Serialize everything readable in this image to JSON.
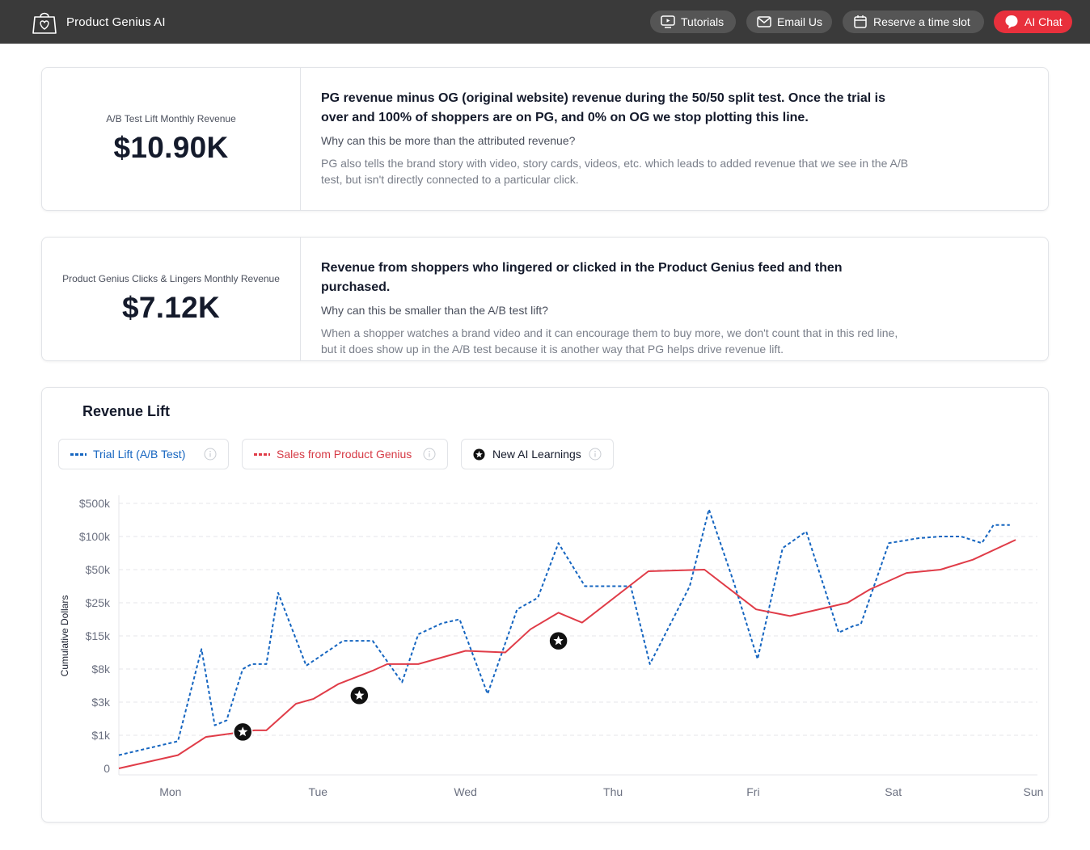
{
  "app": {
    "name": "Product Genius AI",
    "logo_icon": "shopping-bag-heart-icon"
  },
  "nav": {
    "tutorials": "Tutorials",
    "email": "Email Us",
    "reserve": "Reserve a time slot",
    "ai_chat": "AI Chat"
  },
  "metrics": [
    {
      "label": "A/B Test Lift Monthly Revenue",
      "value": "$10.90K",
      "headline": "PG revenue minus OG (original website) revenue during the 50/50 split test. Once the trial is over and 100% of shoppers are on PG, and 0% on OG we stop plotting this line.",
      "question": "Why can this be more than the attributed revenue?",
      "explanation": "PG also tells the brand story with video, story cards, videos, etc. which leads to added revenue that we see in the A/B test, but isn't directly connected to a particular click."
    },
    {
      "label": "Product Genius Clicks & Lingers Monthly Revenue",
      "value": "$7.12K",
      "headline": "Revenue from shoppers who lingered or clicked in the Product Genius feed and then purchased.",
      "question": "Why can this be smaller than the A/B test lift?",
      "explanation": "When a shopper watches a brand video and it can encourage them to buy more, we don't count that in this red line, but it does show up in the A/B test because it is another way that PG helps drive revenue lift."
    }
  ],
  "chart": {
    "title": "Revenue Lift",
    "legend": {
      "trial": "Trial Lift (A/B Test)",
      "sales": "Sales from Product Genius",
      "learnings": "New AI Learnings"
    }
  },
  "chart_data": {
    "type": "line",
    "title": "Revenue Lift",
    "xlabel": "",
    "ylabel": "Cumulative Dollars",
    "y_tick_labels": [
      "0",
      "$1k",
      "$3k",
      "$8k",
      "$15k",
      "$25k",
      "$50k",
      "$100k",
      "$500k"
    ],
    "y_scale": "ordinal-tick",
    "x_tick_labels": [
      "Mon",
      "Tue",
      "Wed",
      "Thu",
      "Fri",
      "Sat",
      "Sun"
    ],
    "x_tick_positions": [
      0.35,
      1.35,
      2.35,
      3.35,
      4.3,
      5.25,
      6.2
    ],
    "xlim": [
      0,
      6.2
    ],
    "grid": true,
    "legend_placement": "top-left",
    "colors": {
      "trial": "#1565c0",
      "sales": "#e03c48",
      "learnings": "#111111"
    },
    "series": [
      {
        "name": "Trial Lift (A/B Test)",
        "style": "dashed",
        "x": [
          0,
          0.4,
          0.56,
          0.65,
          0.73,
          0.84,
          0.9,
          1.0,
          1.08,
          1.27,
          1.52,
          1.6,
          1.72,
          1.92,
          2.03,
          2.19,
          2.31,
          2.5,
          2.7,
          2.84,
          2.98,
          3.16,
          3.47,
          3.6,
          3.87,
          4.0,
          4.17,
          4.33,
          4.5,
          4.66,
          4.88,
          4.98,
          5.03,
          5.22,
          5.42,
          5.57,
          5.71,
          5.85,
          5.93,
          6.04
        ],
        "y": [
          0.4,
          0.82,
          3.6,
          1.3,
          1.45,
          3.0,
          3.15,
          3.15,
          5.3,
          3.1,
          3.85,
          3.85,
          3.85,
          2.6,
          4.05,
          4.38,
          4.5,
          2.25,
          4.8,
          5.15,
          6.8,
          5.5,
          5.5,
          3.15,
          5.5,
          7.82,
          5.6,
          3.3,
          6.65,
          7.15,
          4.1,
          4.3,
          4.35,
          6.8,
          6.95,
          7.0,
          7.0,
          6.8,
          7.35,
          7.35
        ]
      },
      {
        "name": "Sales from Product Genius",
        "style": "solid",
        "x": [
          0,
          0.4,
          0.59,
          0.84,
          0.92,
          1.0,
          1.2,
          1.32,
          1.49,
          1.72,
          1.82,
          2.03,
          2.35,
          2.62,
          2.79,
          2.98,
          3.14,
          3.59,
          3.97,
          4.32,
          4.55,
          4.94,
          5.09,
          5.34,
          5.57,
          5.79,
          6.08
        ],
        "y": [
          0,
          0.4,
          0.95,
          1.1,
          1.15,
          1.15,
          1.95,
          2.1,
          2.55,
          2.95,
          3.15,
          3.15,
          3.55,
          3.5,
          4.2,
          4.7,
          4.4,
          5.95,
          6.0,
          4.8,
          4.6,
          5.0,
          5.4,
          5.9,
          6.0,
          6.3,
          6.9
        ]
      },
      {
        "name": "New AI Learnings",
        "style": "marker-star",
        "x": [
          0.84,
          1.63,
          2.98
        ],
        "y": [
          1.1,
          2.2,
          3.85
        ]
      }
    ]
  }
}
